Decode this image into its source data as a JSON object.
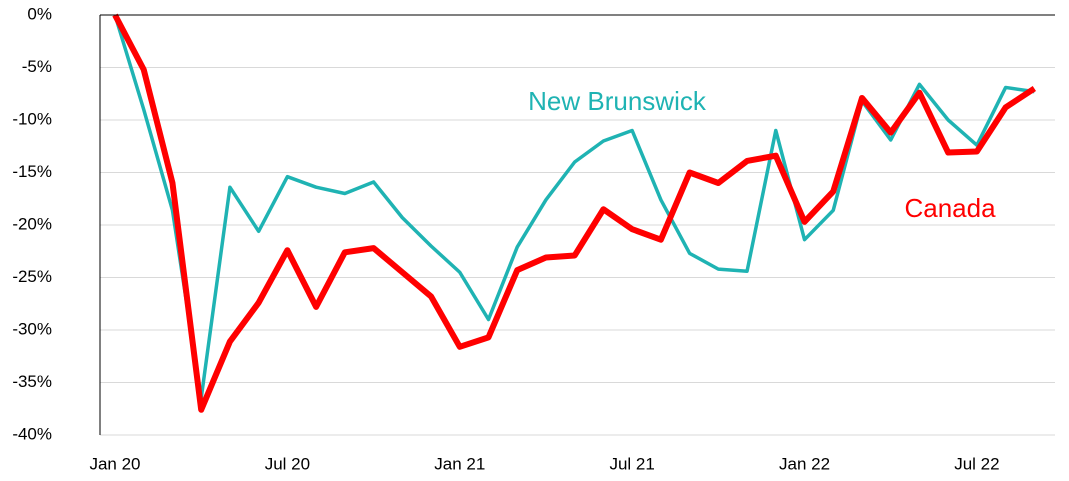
{
  "chart_data": {
    "type": "line",
    "categories": [
      "Jan 20",
      null,
      null,
      null,
      null,
      null,
      "Jul 20",
      null,
      null,
      null,
      null,
      null,
      "Jan 21",
      null,
      null,
      null,
      null,
      null,
      "Jul 21",
      null,
      null,
      null,
      null,
      null,
      "Jan 22",
      null,
      null,
      null,
      null,
      null,
      "Jul 22",
      null,
      null
    ],
    "series": [
      {
        "name": "Canada",
        "color": "#ff0000",
        "values": [
          0,
          -5.2,
          -16,
          -37.6,
          -31.1,
          -27.4,
          -22.4,
          -27.8,
          -22.6,
          -22.2,
          -24.5,
          -26.8,
          -31.6,
          -30.7,
          -24.3,
          -23.1,
          -22.9,
          -18.5,
          -20.4,
          -21.4,
          -15,
          -16,
          -13.9,
          -13.4,
          -19.7,
          -16.8,
          -7.9,
          -11.2,
          -7.4,
          -13.1,
          -13,
          -8.8,
          -7
        ]
      },
      {
        "name": "New Brunswick",
        "color": "#1fb3b3",
        "values": [
          0,
          -9,
          -18.6,
          -36.5,
          -16.4,
          -20.6,
          -15.4,
          -16.4,
          -17,
          -15.9,
          -19.3,
          -22,
          -24.5,
          -29,
          -22.1,
          -17.6,
          -14,
          -12,
          -11,
          -17.6,
          -22.7,
          -24.2,
          -24.4,
          -11,
          -21.4,
          -18.6,
          -8.2,
          -11.9,
          -6.6,
          -10,
          -12.4,
          -6.9,
          -7.3
        ]
      }
    ],
    "ylim": [
      -40,
      0
    ],
    "yticks": [
      {
        "value": 0,
        "label": "0%"
      },
      {
        "value": -5,
        "label": "-5%"
      },
      {
        "value": -10,
        "label": "-10%"
      },
      {
        "value": -15,
        "label": "-15%"
      },
      {
        "value": -20,
        "label": "-20%"
      },
      {
        "value": -25,
        "label": "-25%"
      },
      {
        "value": -30,
        "label": "-30%"
      },
      {
        "value": -35,
        "label": "-35%"
      },
      {
        "value": -40,
        "label": "-40%"
      }
    ],
    "grid": true
  }
}
